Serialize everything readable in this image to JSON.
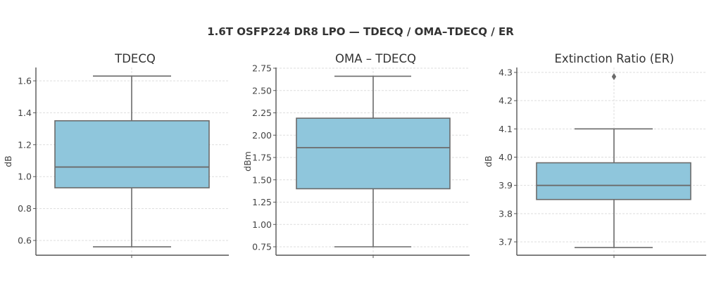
{
  "title": "1.6T OSFP224 DR8 LPO — TDECQ / OMA–TDECQ / ER",
  "colors": {
    "box_fill": "#8fc6dc",
    "box_edge": "#6b6b6b",
    "grid": "#dddddd",
    "axis": "#555555"
  },
  "chart_data": [
    {
      "type": "box",
      "title": "TDECQ",
      "xlabel": "",
      "ylabel": "dB",
      "yticks": [
        0.6,
        0.8,
        1.0,
        1.2,
        1.4,
        1.6
      ],
      "ytick_labels": [
        "0.6",
        "0.8",
        "1.0",
        "1.2",
        "1.4",
        "1.6"
      ],
      "ylim": [
        0.51,
        1.68
      ],
      "grid": true,
      "stats": {
        "whisker_low": 0.56,
        "q1": 0.93,
        "median": 1.06,
        "q3": 1.35,
        "whisker_high": 1.63,
        "outliers": []
      }
    },
    {
      "type": "box",
      "title": "OMA – TDECQ",
      "xlabel": "",
      "ylabel": "dBm",
      "yticks": [
        0.75,
        1.0,
        1.25,
        1.5,
        1.75,
        2.0,
        2.25,
        2.5,
        2.75
      ],
      "ytick_labels": [
        "0.75",
        "1.00",
        "1.25",
        "1.50",
        "1.75",
        "2.00",
        "2.25",
        "2.50",
        "2.75"
      ],
      "ylim": [
        0.65,
        2.76
      ],
      "grid": true,
      "stats": {
        "whisker_low": 0.75,
        "q1": 1.4,
        "median": 1.86,
        "q3": 2.19,
        "whisker_high": 2.66,
        "outliers": []
      }
    },
    {
      "type": "box",
      "title": "Extinction Ratio (ER)",
      "xlabel": "",
      "ylabel": "dB",
      "yticks": [
        3.7,
        3.8,
        3.9,
        4.0,
        4.1,
        4.2,
        4.3
      ],
      "ytick_labels": [
        "3.7",
        "3.8",
        "3.9",
        "4.0",
        "4.1",
        "4.2",
        "4.3"
      ],
      "ylim": [
        3.65,
        4.32
      ],
      "grid": true,
      "stats": {
        "whisker_low": 3.68,
        "q1": 3.85,
        "median": 3.9,
        "q3": 3.98,
        "whisker_high": 4.1,
        "outliers": [
          4.285
        ]
      }
    }
  ]
}
